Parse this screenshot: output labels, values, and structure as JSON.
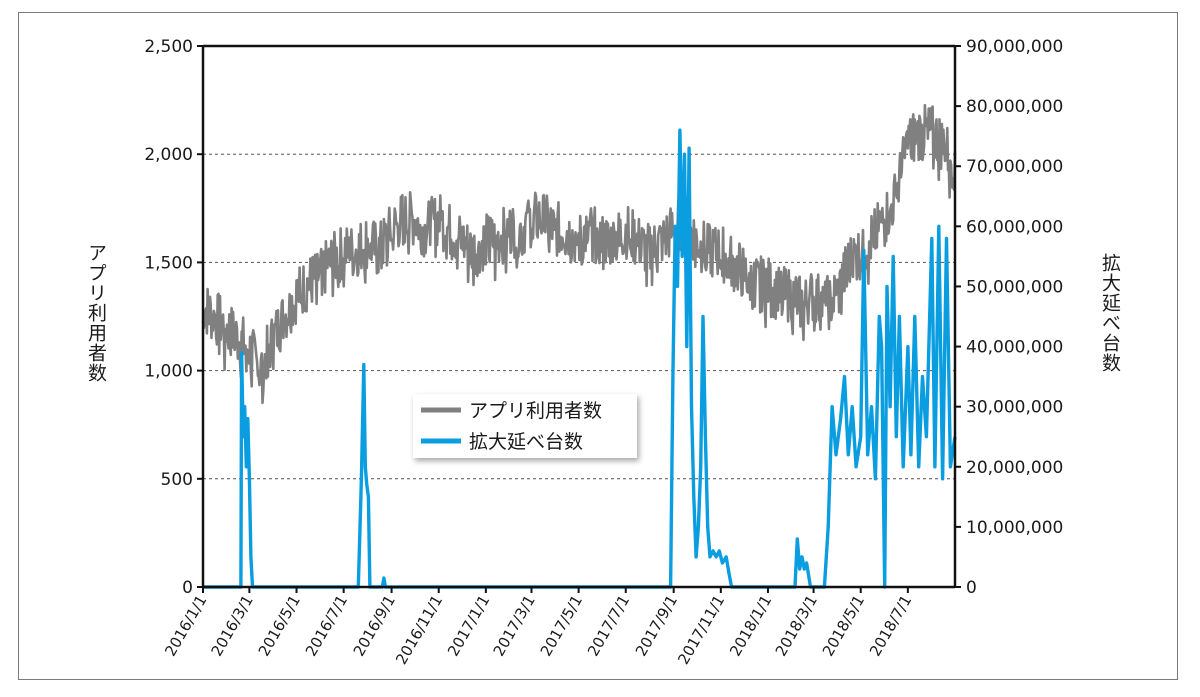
{
  "chart_data": {
    "type": "line",
    "title": "",
    "x_start": "2016-01-01",
    "x_end": "2018-08-31",
    "x_ticks": [
      "2016/1/1",
      "2016/3/1",
      "2016/5/1",
      "2016/7/1",
      "2016/9/1",
      "2016/11/1",
      "2017/1/1",
      "2017/3/1",
      "2017/5/1",
      "2017/7/1",
      "2017/9/1",
      "2017/11/1",
      "2018/1/1",
      "2018/3/1",
      "2018/5/1",
      "2018/7/1"
    ],
    "y_left": {
      "label": "アプリ利用者数",
      "ylim": [
        0,
        2500
      ],
      "ticks": [
        "0",
        "500",
        "1,000",
        "1,500",
        "2,000",
        "2,500"
      ]
    },
    "y_right": {
      "label": "拡大延べ台数",
      "ylim": [
        0,
        90000000
      ],
      "ticks": [
        "0",
        "10,000,000",
        "20,000,000",
        "30,000,000",
        "40,000,000",
        "50,000,000",
        "60,000,000",
        "70,000,000",
        "80,000,000",
        "90,000,000"
      ]
    },
    "grid": "dashed horizontal at left-axis ticks",
    "legend_position": "center-left",
    "series": [
      {
        "name": "アプリ利用者数",
        "axis": "left",
        "color": "#808080",
        "x": [
          "2016-01-01",
          "2016-01-15",
          "2016-02-01",
          "2016-02-15",
          "2016-03-01",
          "2016-03-15",
          "2016-04-01",
          "2016-04-15",
          "2016-05-01",
          "2016-05-15",
          "2016-06-01",
          "2016-06-15",
          "2016-07-01",
          "2016-07-15",
          "2016-08-01",
          "2016-08-15",
          "2016-09-01",
          "2016-09-15",
          "2016-10-01",
          "2016-10-15",
          "2016-11-01",
          "2016-11-15",
          "2016-12-01",
          "2016-12-15",
          "2017-01-01",
          "2017-01-15",
          "2017-02-01",
          "2017-02-15",
          "2017-03-01",
          "2017-03-15",
          "2017-04-01",
          "2017-04-15",
          "2017-05-01",
          "2017-05-15",
          "2017-06-01",
          "2017-06-15",
          "2017-07-01",
          "2017-07-15",
          "2017-08-01",
          "2017-08-15",
          "2017-09-01",
          "2017-09-15",
          "2017-10-01",
          "2017-10-15",
          "2017-11-01",
          "2017-11-15",
          "2017-12-01",
          "2017-12-15",
          "2018-01-01",
          "2018-01-15",
          "2018-02-01",
          "2018-02-15",
          "2018-03-01",
          "2018-03-15",
          "2018-04-01",
          "2018-04-15",
          "2018-05-01",
          "2018-05-15",
          "2018-06-01",
          "2018-06-15",
          "2018-07-01",
          "2018-07-15",
          "2018-08-01",
          "2018-08-15",
          "2018-08-31"
        ],
        "values": [
          1300,
          1250,
          1200,
          1150,
          1100,
          1000,
          1150,
          1250,
          1350,
          1400,
          1450,
          1500,
          1550,
          1550,
          1600,
          1550,
          1650,
          1700,
          1700,
          1650,
          1700,
          1650,
          1600,
          1550,
          1600,
          1600,
          1650,
          1650,
          1700,
          1700,
          1650,
          1650,
          1600,
          1650,
          1600,
          1600,
          1650,
          1600,
          1550,
          1600,
          1650,
          1700,
          1600,
          1550,
          1550,
          1500,
          1450,
          1400,
          1400,
          1350,
          1350,
          1300,
          1350,
          1300,
          1350,
          1500,
          1550,
          1600,
          1700,
          1800,
          2050,
          2100,
          2100,
          2050,
          1950
        ]
      },
      {
        "name": "拡大延べ台数",
        "axis": "right",
        "color": "#0a9de0",
        "points": [
          [
            "2016-01-01",
            0
          ],
          [
            "2016-02-19",
            0
          ],
          [
            "2016-02-20",
            39000000
          ],
          [
            "2016-02-22",
            25000000
          ],
          [
            "2016-02-24",
            30000000
          ],
          [
            "2016-02-26",
            20000000
          ],
          [
            "2016-02-28",
            28000000
          ],
          [
            "2016-03-01",
            18000000
          ],
          [
            "2016-03-03",
            5000000
          ],
          [
            "2016-03-05",
            0
          ],
          [
            "2016-07-20",
            0
          ],
          [
            "2016-07-24",
            18000000
          ],
          [
            "2016-07-27",
            37000000
          ],
          [
            "2016-07-29",
            20000000
          ],
          [
            "2016-07-31",
            17000000
          ],
          [
            "2016-08-02",
            15000000
          ],
          [
            "2016-08-04",
            0
          ],
          [
            "2016-08-20",
            0
          ],
          [
            "2016-08-22",
            1500000
          ],
          [
            "2016-08-24",
            0
          ],
          [
            "2017-08-28",
            0
          ],
          [
            "2017-08-31",
            35000000
          ],
          [
            "2017-09-03",
            60000000
          ],
          [
            "2017-09-06",
            50000000
          ],
          [
            "2017-09-09",
            76000000
          ],
          [
            "2017-09-12",
            55000000
          ],
          [
            "2017-09-15",
            72000000
          ],
          [
            "2017-09-18",
            40000000
          ],
          [
            "2017-09-21",
            73000000
          ],
          [
            "2017-09-24",
            30000000
          ],
          [
            "2017-09-27",
            15000000
          ],
          [
            "2017-09-30",
            5000000
          ],
          [
            "2017-10-03",
            10000000
          ],
          [
            "2017-10-06",
            20000000
          ],
          [
            "2017-10-09",
            45000000
          ],
          [
            "2017-10-12",
            25000000
          ],
          [
            "2017-10-15",
            10000000
          ],
          [
            "2017-10-18",
            5000000
          ],
          [
            "2017-10-22",
            6000000
          ],
          [
            "2017-10-26",
            5000000
          ],
          [
            "2017-10-30",
            6000000
          ],
          [
            "2017-11-03",
            4000000
          ],
          [
            "2017-11-08",
            5000000
          ],
          [
            "2017-11-12",
            2000000
          ],
          [
            "2017-11-15",
            0
          ],
          [
            "2018-02-05",
            0
          ],
          [
            "2018-02-08",
            8000000
          ],
          [
            "2018-02-11",
            3000000
          ],
          [
            "2018-02-14",
            5000000
          ],
          [
            "2018-02-17",
            3000000
          ],
          [
            "2018-02-20",
            4000000
          ],
          [
            "2018-02-25",
            0
          ],
          [
            "2018-03-15",
            0
          ],
          [
            "2018-03-20",
            10000000
          ],
          [
            "2018-03-25",
            30000000
          ],
          [
            "2018-03-30",
            22000000
          ],
          [
            "2018-04-05",
            28000000
          ],
          [
            "2018-04-10",
            35000000
          ],
          [
            "2018-04-15",
            22000000
          ],
          [
            "2018-04-20",
            30000000
          ],
          [
            "2018-04-25",
            20000000
          ],
          [
            "2018-05-01",
            25000000
          ],
          [
            "2018-05-05",
            56000000
          ],
          [
            "2018-05-10",
            22000000
          ],
          [
            "2018-05-15",
            30000000
          ],
          [
            "2018-05-20",
            18000000
          ],
          [
            "2018-05-25",
            45000000
          ],
          [
            "2018-05-28",
            40000000
          ],
          [
            "2018-06-01",
            0
          ],
          [
            "2018-06-04",
            50000000
          ],
          [
            "2018-06-08",
            30000000
          ],
          [
            "2018-06-12",
            55000000
          ],
          [
            "2018-06-16",
            25000000
          ],
          [
            "2018-06-20",
            45000000
          ],
          [
            "2018-06-25",
            20000000
          ],
          [
            "2018-07-01",
            40000000
          ],
          [
            "2018-07-05",
            22000000
          ],
          [
            "2018-07-10",
            45000000
          ],
          [
            "2018-07-15",
            20000000
          ],
          [
            "2018-07-20",
            35000000
          ],
          [
            "2018-07-25",
            25000000
          ],
          [
            "2018-08-01",
            58000000
          ],
          [
            "2018-08-05",
            20000000
          ],
          [
            "2018-08-10",
            60000000
          ],
          [
            "2018-08-15",
            18000000
          ],
          [
            "2018-08-20",
            58000000
          ],
          [
            "2018-08-25",
            20000000
          ],
          [
            "2018-08-31",
            25000000
          ]
        ]
      }
    ]
  }
}
